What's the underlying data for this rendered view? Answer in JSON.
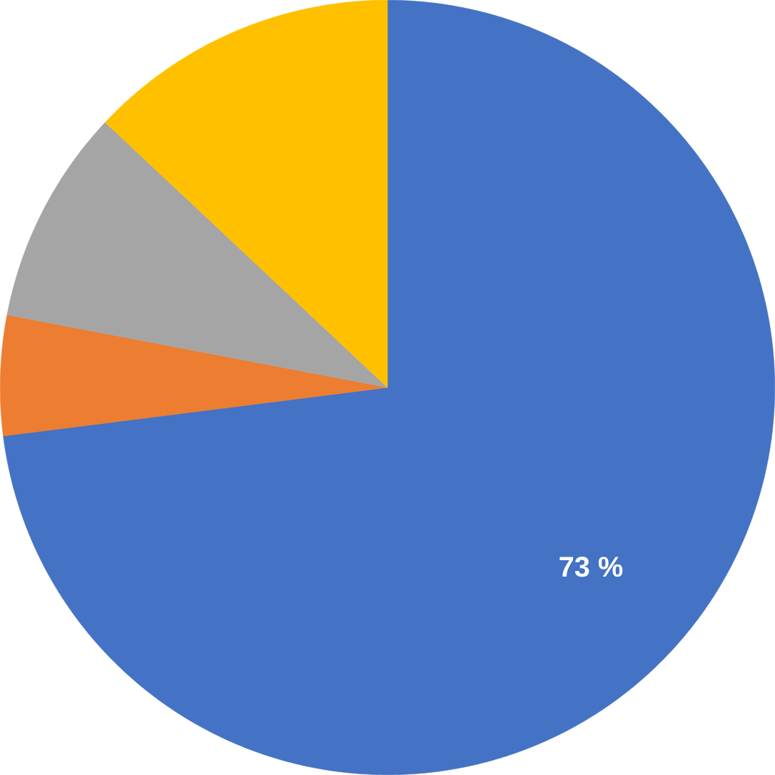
{
  "chart_data": {
    "type": "pie",
    "categories": [
      null,
      null,
      null,
      null
    ],
    "values": [
      73,
      5,
      9,
      13
    ],
    "colors": [
      "#4472c4",
      "#ed7d31",
      "#a5a5a5",
      "#ffc000"
    ],
    "value_labels": [
      "73 %",
      null,
      null,
      null
    ]
  }
}
